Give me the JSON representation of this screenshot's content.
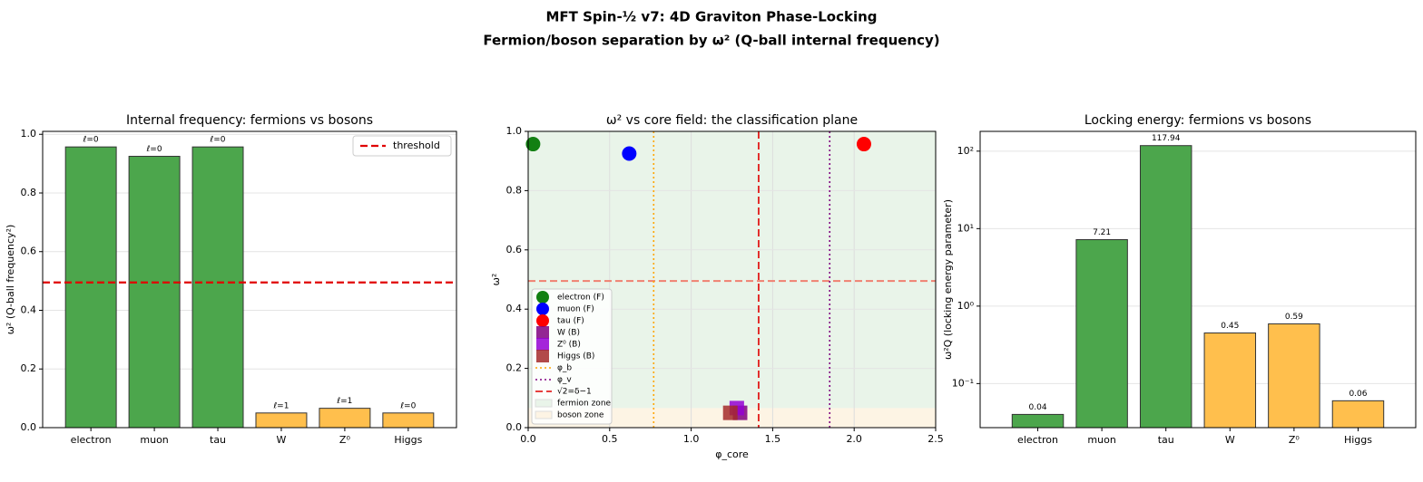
{
  "title": "MFT Spin-½ v7: 4D Graviton Phase-Locking",
  "subtitle": "Fermion/boson separation by ω² (Q-ball internal frequency)",
  "chart_data": [
    {
      "type": "bar",
      "title": "Internal frequency: fermions vs bosons",
      "ylabel": "ω² (Q-ball frequency²)",
      "categories": [
        "electron",
        "muon",
        "tau",
        "W",
        "Z⁰",
        "Higgs"
      ],
      "values": [
        0.957,
        0.925,
        0.957,
        0.05,
        0.066,
        0.05
      ],
      "colors": [
        "#4ca64c",
        "#4ca64c",
        "#4ca64c",
        "#ffbf4d",
        "#ffbf4d",
        "#ffbf4d"
      ],
      "annotations": [
        "ℓ=0",
        "ℓ=0",
        "ℓ=0",
        "ℓ=1",
        "ℓ=1",
        "ℓ=0"
      ],
      "threshold": {
        "name": "threshold",
        "value": 0.495,
        "color": "#e00000"
      },
      "legend": "upper right",
      "grid": true,
      "ylim": [
        0,
        1.01
      ],
      "yticks": [
        {
          "value": 0,
          "label": "0.0"
        },
        0.2,
        0.4,
        0.6,
        0.8,
        {
          "value": 1,
          "label": "1.0"
        }
      ]
    },
    {
      "type": "scatter",
      "title": "ω² vs core field: the classification plane",
      "xlabel": "φ_core",
      "ylabel": "ω²",
      "series": [
        {
          "name": "electron (F)",
          "color": "#138013",
          "marker": "circle",
          "x": [
            0.03
          ],
          "values": [
            0.957
          ]
        },
        {
          "name": "muon (F)",
          "color": "#0000ff",
          "marker": "circle",
          "x": [
            0.62
          ],
          "values": [
            0.925
          ]
        },
        {
          "name": "tau (F)",
          "color": "#ff0000",
          "marker": "circle",
          "x": [
            2.06
          ],
          "values": [
            0.957
          ]
        },
        {
          "name": "W (B)",
          "color": "#800080",
          "marker": "square",
          "x": [
            1.3
          ],
          "values": [
            0.05
          ]
        },
        {
          "name": "Z⁰ (B)",
          "color": "#9400d3",
          "marker": "square",
          "x": [
            1.28
          ],
          "values": [
            0.066
          ]
        },
        {
          "name": "Higgs (B)",
          "color": "#a52a2a",
          "marker": "square",
          "x": [
            1.24
          ],
          "values": [
            0.05
          ]
        }
      ],
      "vlines": [
        {
          "name": "φ_b",
          "x": 0.77,
          "color": "#ffa500",
          "style": "dotted"
        },
        {
          "name": "φ_v",
          "x": 1.85,
          "color": "#800080",
          "style": "dotted"
        },
        {
          "name": "√2=δ−1",
          "x": 1.414,
          "color": "#e00000",
          "style": "dashed"
        }
      ],
      "hlines": [
        {
          "y": 0.495,
          "color": "#f08070",
          "style": "dashed"
        }
      ],
      "zones": [
        {
          "name": "fermion zone",
          "y": [
            0.066,
            1
          ],
          "color": "#e9f4e9"
        },
        {
          "name": "boson zone",
          "y": [
            0,
            0.066
          ],
          "color": "#fdf4e4"
        }
      ],
      "legend": "lower left",
      "grid": true,
      "xlim": [
        0,
        2.5
      ],
      "xticks": [
        {
          "value": 0,
          "label": "0.0"
        },
        0.5,
        {
          "value": 1,
          "label": "1.0"
        },
        1.5,
        {
          "value": 2,
          "label": "2.0"
        },
        2.5
      ],
      "ylim": [
        0,
        1
      ],
      "yticks": [
        {
          "value": 0,
          "label": "0.0"
        },
        0.2,
        0.4,
        0.6,
        0.8,
        {
          "value": 1,
          "label": "1.0"
        }
      ]
    },
    {
      "type": "bar",
      "title": "Locking energy: fermions vs bosons",
      "ylabel": "ω²Q (locking energy parameter)",
      "categories": [
        "electron",
        "muon",
        "tau",
        "W",
        "Z⁰",
        "Higgs"
      ],
      "values": [
        0.04,
        7.21,
        117.94,
        0.45,
        0.59,
        0.06
      ],
      "colors": [
        "#4ca64c",
        "#4ca64c",
        "#4ca64c",
        "#ffbf4d",
        "#ffbf4d",
        "#ffbf4d"
      ],
      "log": true,
      "grid": true,
      "ylim": [
        0.027,
        180
      ],
      "yticks": [
        {
          "value": 0.1,
          "label": "10⁻¹"
        },
        {
          "value": 1,
          "label": "10⁰"
        },
        {
          "value": 10,
          "label": "10¹"
        },
        {
          "value": 100,
          "label": "10²"
        }
      ]
    }
  ]
}
